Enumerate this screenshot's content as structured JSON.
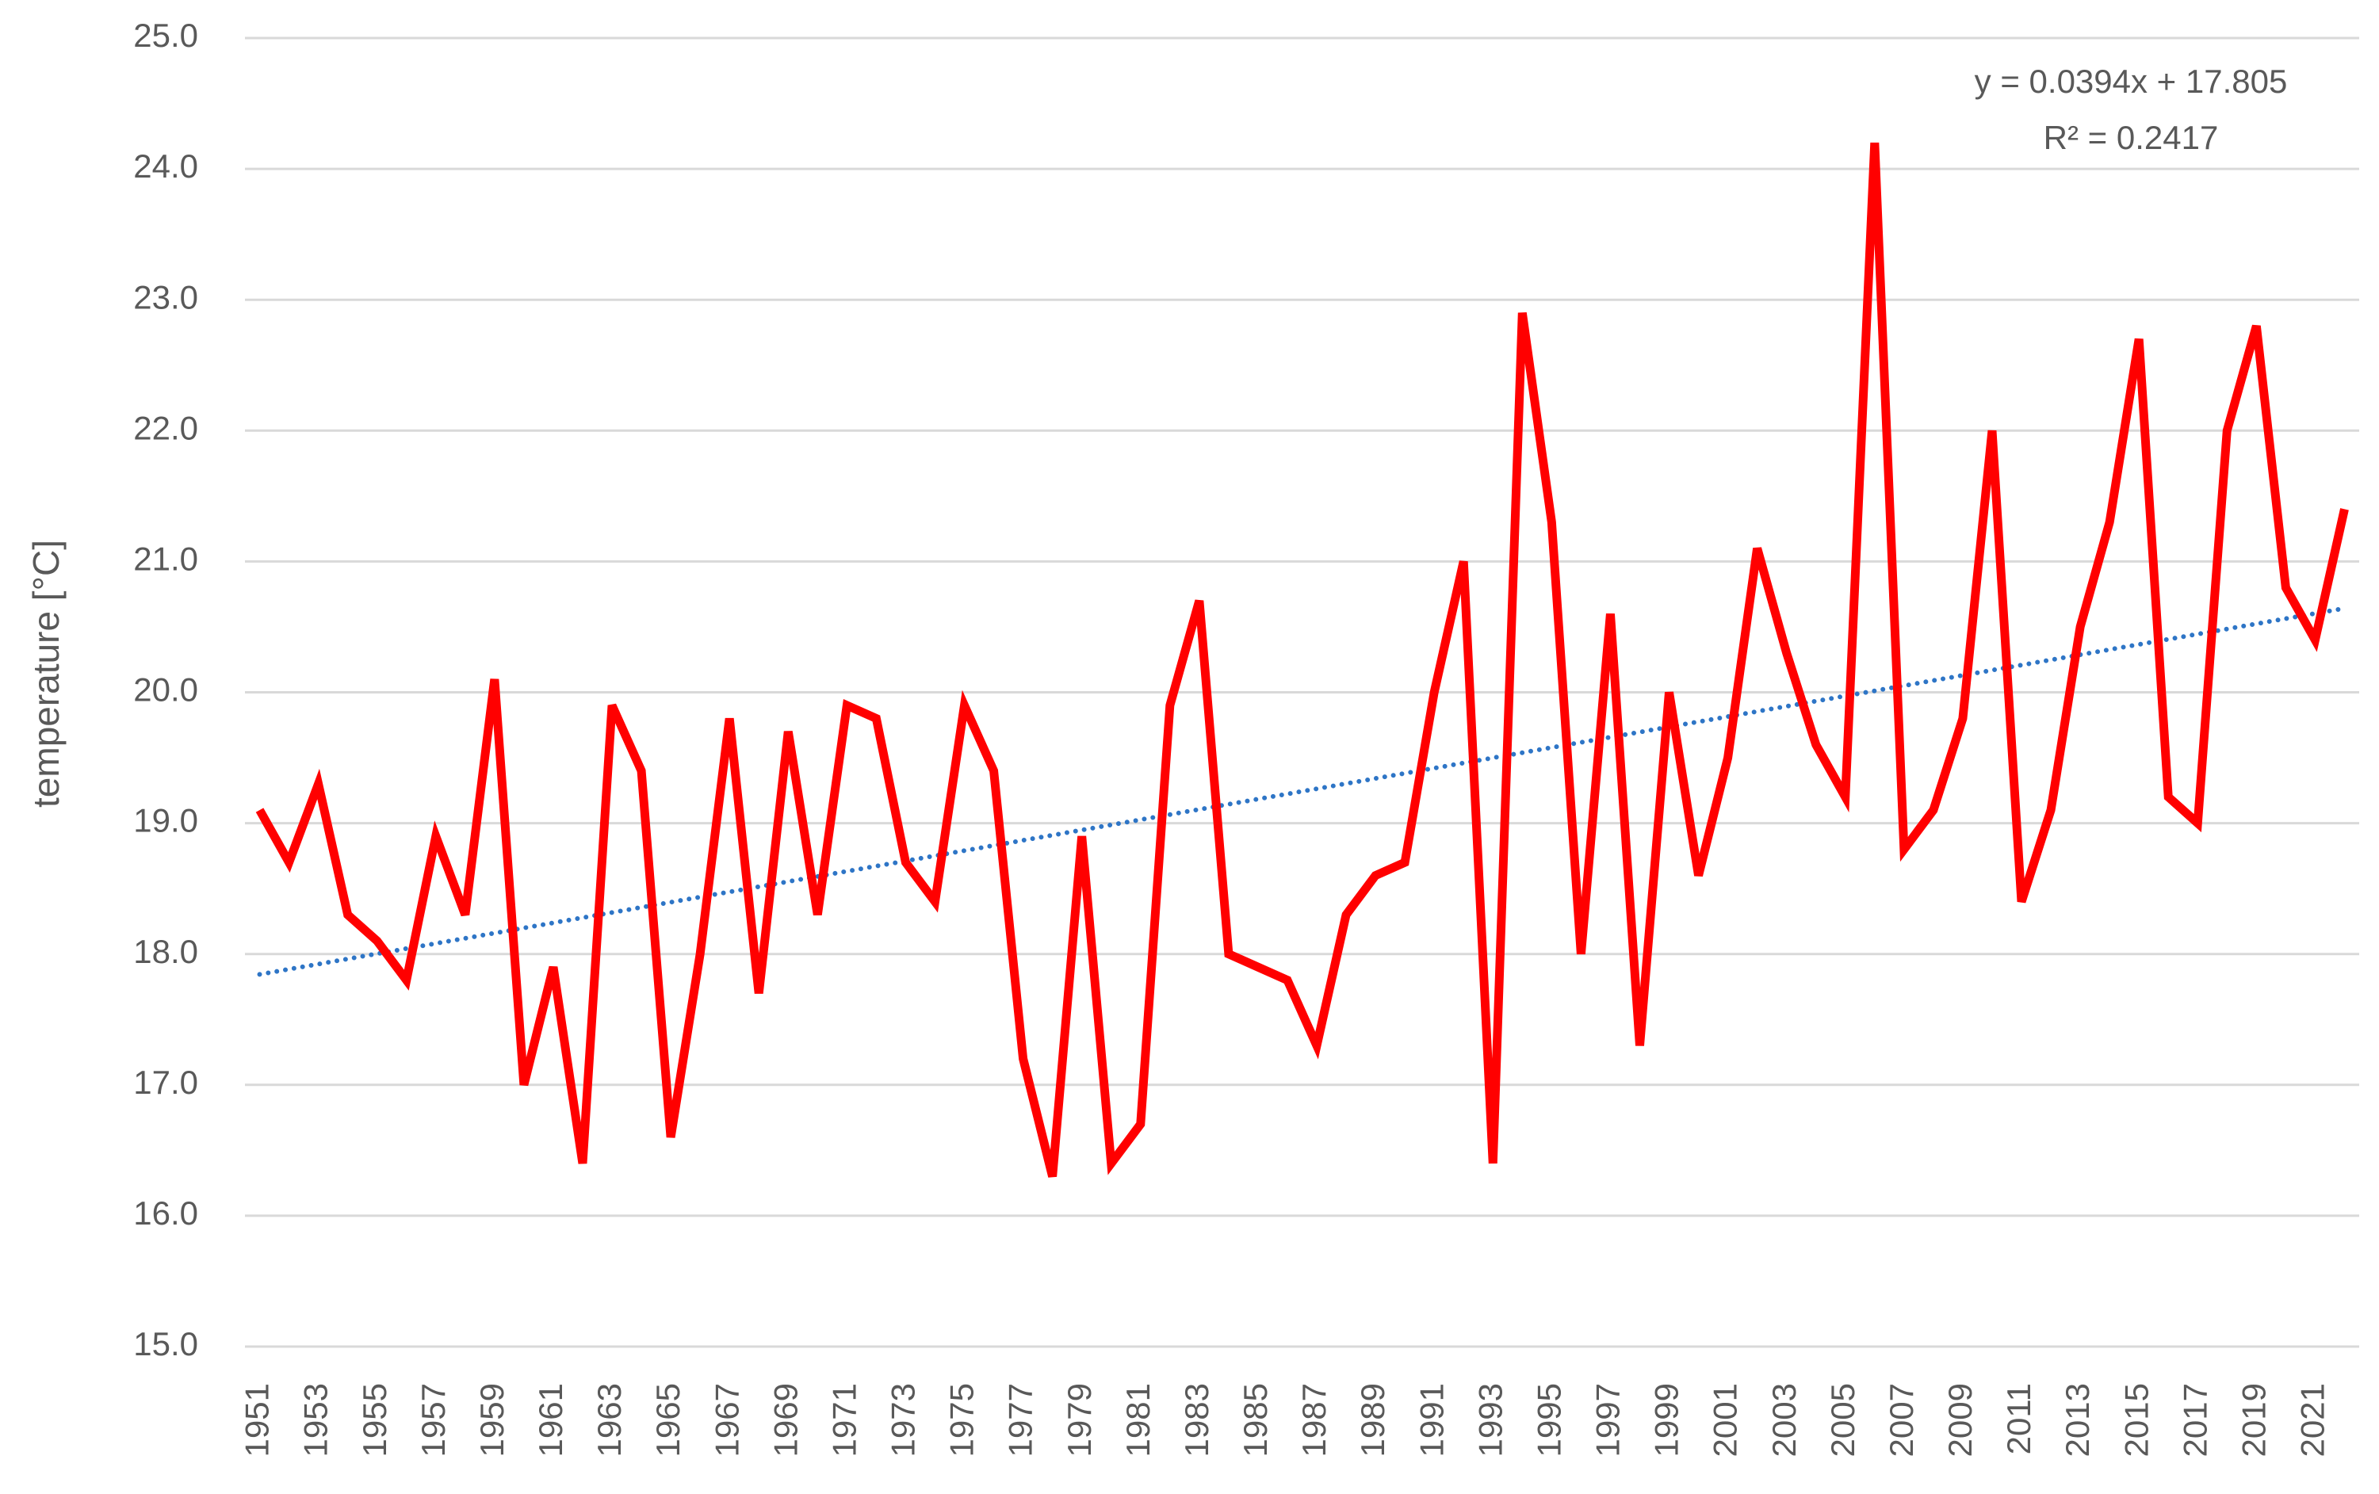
{
  "chart_data": {
    "type": "line",
    "y_label": "temperature [°C]",
    "x": [
      1951,
      1952,
      1953,
      1954,
      1955,
      1956,
      1957,
      1958,
      1959,
      1960,
      1961,
      1962,
      1963,
      1964,
      1965,
      1966,
      1967,
      1968,
      1969,
      1970,
      1971,
      1972,
      1973,
      1974,
      1975,
      1976,
      1977,
      1978,
      1979,
      1980,
      1981,
      1982,
      1983,
      1984,
      1985,
      1986,
      1987,
      1988,
      1989,
      1990,
      1991,
      1992,
      1993,
      1994,
      1995,
      1996,
      1997,
      1998,
      1999,
      2000,
      2001,
      2002,
      2003,
      2004,
      2005,
      2006,
      2007,
      2008,
      2009,
      2010,
      2011,
      2012,
      2013,
      2014,
      2015,
      2016,
      2017,
      2018,
      2019,
      2020,
      2021,
      2022
    ],
    "series": [
      {
        "name": "temperature",
        "color": "#ff0000",
        "values": [
          19.1,
          18.7,
          19.3,
          18.3,
          18.1,
          17.8,
          18.9,
          18.3,
          20.1,
          17.0,
          17.9,
          16.4,
          19.9,
          19.4,
          16.6,
          18.0,
          19.8,
          17.7,
          19.7,
          18.3,
          19.9,
          19.8,
          18.7,
          18.4,
          19.9,
          19.4,
          17.2,
          16.3,
          18.9,
          16.4,
          16.7,
          19.9,
          20.7,
          18.0,
          17.9,
          17.8,
          17.3,
          18.3,
          18.6,
          18.7,
          20.0,
          21.0,
          16.4,
          22.9,
          21.3,
          18.0,
          20.6,
          17.3,
          20.0,
          18.6,
          19.5,
          21.1,
          20.3,
          19.6,
          19.2,
          24.2,
          18.8,
          19.1,
          19.8,
          22.0,
          18.4,
          19.1,
          20.5,
          21.3,
          22.7,
          19.2,
          19.0,
          22.0,
          22.8,
          20.8,
          20.4,
          21.4
        ]
      }
    ],
    "trend": {
      "equation": "y = 0.0394x + 17.805",
      "r2_label": "R² = 0.2417",
      "slope": 0.0394,
      "intercept": 17.805,
      "color": "#2e75c6"
    },
    "xlim": [
      1950.5,
      2022.5
    ],
    "xticks": [
      1951,
      1953,
      1955,
      1957,
      1959,
      1961,
      1963,
      1965,
      1967,
      1969,
      1971,
      1973,
      1975,
      1977,
      1979,
      1981,
      1983,
      1985,
      1987,
      1989,
      1991,
      1993,
      1995,
      1997,
      1999,
      2001,
      2003,
      2005,
      2007,
      2009,
      2011,
      2013,
      2015,
      2017,
      2019,
      2021
    ],
    "ylim": [
      15,
      25
    ],
    "yticks": [
      {
        "value": 15,
        "label": "15.0"
      },
      {
        "value": 16,
        "label": "16.0"
      },
      {
        "value": 17,
        "label": "17.0"
      },
      {
        "value": 18,
        "label": "18.0"
      },
      {
        "value": 19,
        "label": "19.0"
      },
      {
        "value": 20,
        "label": "20.0"
      },
      {
        "value": 21,
        "label": "21.0"
      },
      {
        "value": 22,
        "label": "22.0"
      },
      {
        "value": 23,
        "label": "23.0"
      },
      {
        "value": 24,
        "label": "24.0"
      },
      {
        "value": 25,
        "label": "25.0"
      }
    ],
    "grid": true
  }
}
